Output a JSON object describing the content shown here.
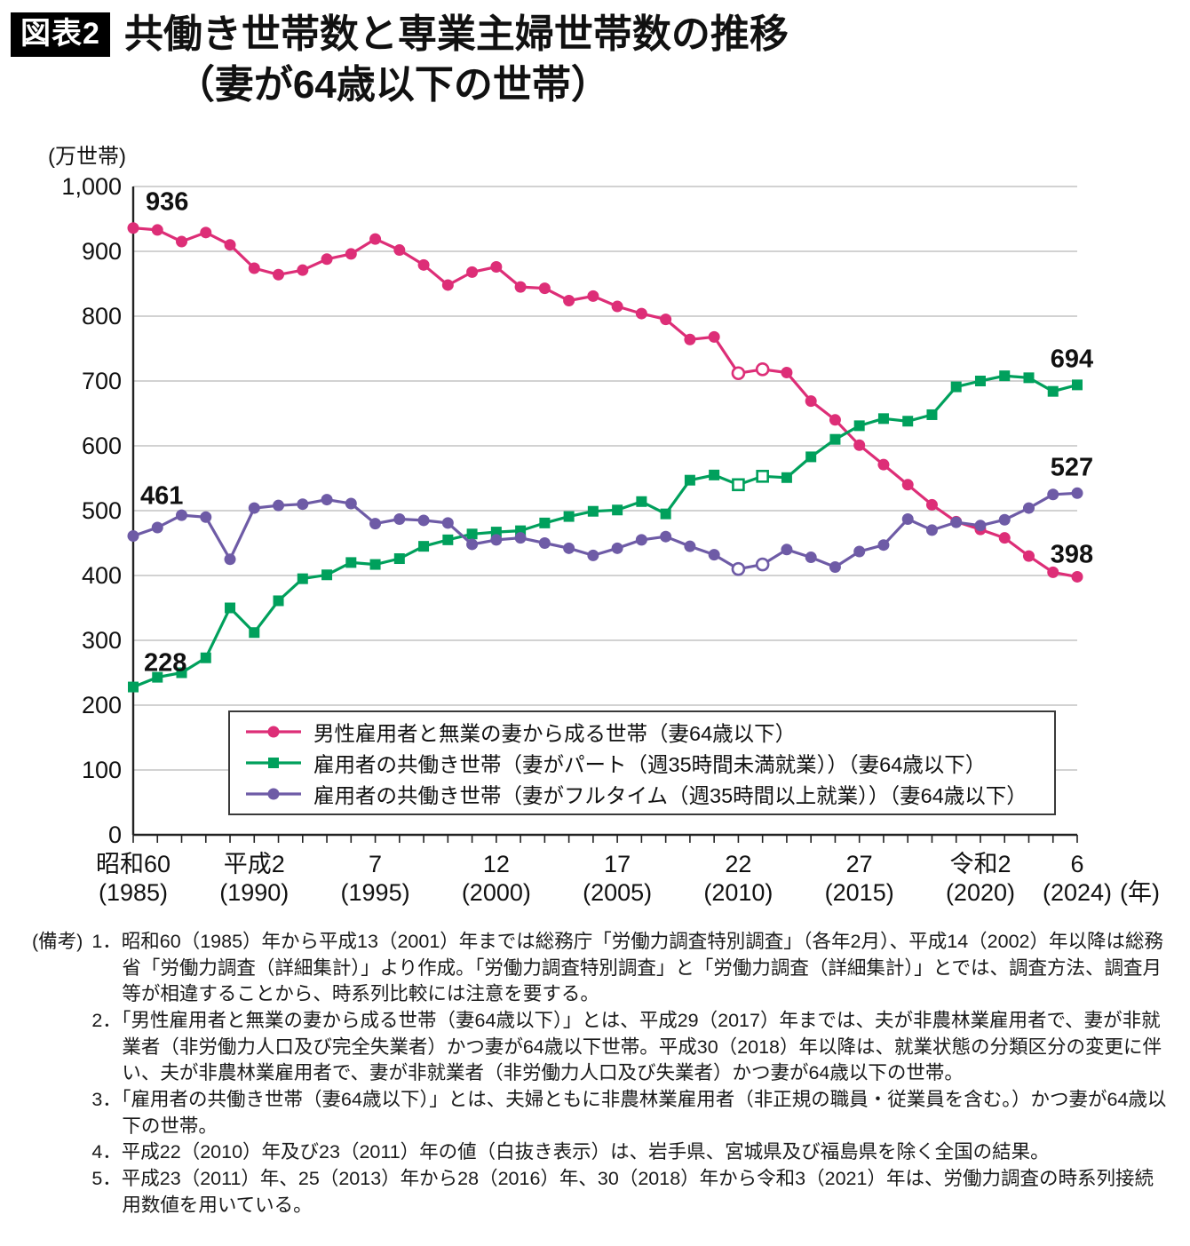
{
  "header": {
    "badge": "図表2",
    "title_line1": "共働き世帯数と専業主婦世帯数の推移",
    "title_line2": "（妻が64歳以下の世帯）"
  },
  "chart_data": {
    "type": "line",
    "unit_label": "(万世帯)",
    "x_axis_suffix": "(年)",
    "ylim": [
      0,
      1000
    ],
    "ytick_step": 100,
    "grid": true,
    "legend_position": "inside-bottom",
    "years": [
      1985,
      1986,
      1987,
      1988,
      1989,
      1990,
      1991,
      1992,
      1993,
      1994,
      1995,
      1996,
      1997,
      1998,
      1999,
      2000,
      2001,
      2002,
      2003,
      2004,
      2005,
      2006,
      2007,
      2008,
      2009,
      2010,
      2011,
      2012,
      2013,
      2014,
      2015,
      2016,
      2017,
      2018,
      2019,
      2020,
      2021,
      2022,
      2023,
      2024
    ],
    "x_axis_ticks": [
      {
        "year": 1985,
        "era": "昭和60",
        "western": "(1985)"
      },
      {
        "year": 1990,
        "era": "平成2",
        "western": "(1990)"
      },
      {
        "year": 1995,
        "era": "7",
        "western": "(1995)"
      },
      {
        "year": 2000,
        "era": "12",
        "western": "(2000)"
      },
      {
        "year": 2005,
        "era": "17",
        "western": "(2005)"
      },
      {
        "year": 2010,
        "era": "22",
        "western": "(2010)"
      },
      {
        "year": 2015,
        "era": "27",
        "western": "(2015)"
      },
      {
        "year": 2020,
        "era": "令和2",
        "western": "(2020)"
      },
      {
        "year": 2024,
        "era": "6",
        "western": "(2024)"
      }
    ],
    "open_marker_years": [
      2010,
      2011
    ],
    "series": [
      {
        "id": "single-income",
        "name": "男性雇用者と無業の妻から成る世帯（妻64歳以下）",
        "color": "#dd2e77",
        "marker": "circle",
        "start_label": "936",
        "end_label": "398",
        "values": [
          936,
          933,
          915,
          929,
          910,
          874,
          864,
          871,
          888,
          896,
          919,
          902,
          879,
          848,
          868,
          876,
          845,
          843,
          824,
          831,
          815,
          804,
          795,
          764,
          768,
          712,
          718,
          713,
          669,
          640,
          601,
          571,
          540,
          509,
          483,
          471,
          458,
          430,
          405,
          398
        ]
      },
      {
        "id": "dual-income-part-time",
        "name": "雇用者の共働き世帯（妻がパート（週35時間未満就業））（妻64歳以下）",
        "color": "#00a05c",
        "marker": "square",
        "start_label": "228",
        "end_label": "694",
        "values": [
          228,
          243,
          250,
          273,
          350,
          312,
          361,
          395,
          401,
          420,
          417,
          426,
          445,
          455,
          464,
          467,
          469,
          481,
          491,
          499,
          501,
          514,
          495,
          547,
          555,
          540,
          553,
          551,
          583,
          610,
          631,
          642,
          638,
          648,
          691,
          700,
          708,
          705,
          684,
          694
        ]
      },
      {
        "id": "dual-income-full-time",
        "name": "雇用者の共働き世帯（妻がフルタイム（週35時間以上就業））（妻64歳以下）",
        "color": "#6e5ba6",
        "marker": "circle",
        "start_label": "461",
        "end_label": "527",
        "values": [
          461,
          474,
          493,
          490,
          425,
          504,
          508,
          510,
          517,
          511,
          480,
          487,
          485,
          481,
          448,
          455,
          458,
          450,
          442,
          431,
          442,
          455,
          460,
          445,
          432,
          410,
          417,
          440,
          428,
          413,
          437,
          447,
          487,
          470,
          482,
          477,
          486,
          504,
          525,
          527
        ]
      }
    ]
  },
  "notes": {
    "label": "(備考)",
    "items": [
      "1．昭和60（1985）年から平成13（2001）年までは総務庁「労働力調査特別調査」（各年2月）、平成14（2002）年以降は総務省「労働力調査（詳細集計）」より作成。「労働力調査特別調査」と「労働力調査（詳細集計）」とでは、調査方法、調査月等が相違することから、時系列比較には注意を要する。",
      "2．「男性雇用者と無業の妻から成る世帯（妻64歳以下）」とは、平成29（2017）年までは、夫が非農林業雇用者で、妻が非就業者（非労働力人口及び完全失業者）かつ妻が64歳以下世帯。平成30（2018）年以降は、就業状態の分類区分の変更に伴い、夫が非農林業雇用者で、妻が非就業者（非労働力人口及び失業者）かつ妻が64歳以下の世帯。",
      "3．「雇用者の共働き世帯（妻64歳以下）」とは、夫婦ともに非農林業雇用者（非正規の職員・従業員を含む。）かつ妻が64歳以下の世帯。",
      "4．平成22（2010）年及び23（2011）年の値（白抜き表示）は、岩手県、宮城県及び福島県を除く全国の結果。",
      "5．平成23（2011）年、25（2013）年から28（2016）年、30（2018）年から令和3（2021）年は、労働力調査の時系列接続用数値を用いている。"
    ]
  }
}
